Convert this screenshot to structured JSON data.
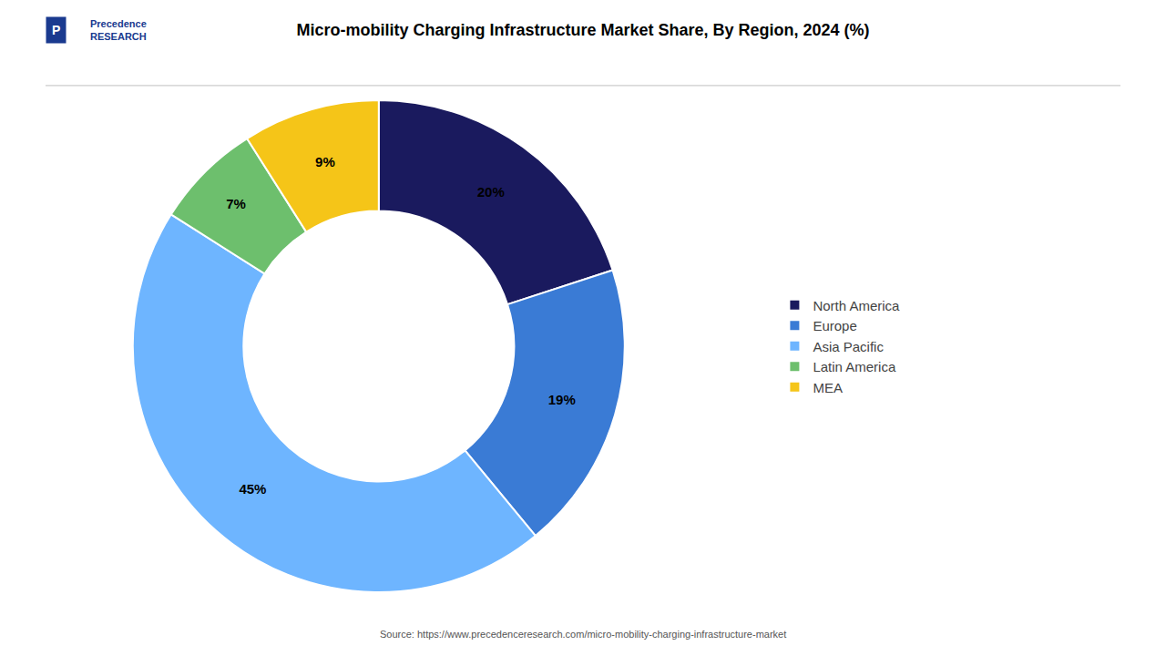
{
  "chart_data": {
    "type": "pie",
    "title": "Micro-mobility Charging Infrastructure Market Share, By Region, 2024 (%)",
    "categories": [
      "North America",
      "Europe",
      "Asia Pacific",
      "Latin America",
      "MEA"
    ],
    "values": [
      20,
      19,
      45,
      7,
      9
    ],
    "value_labels": [
      "20%",
      "19%",
      "45%",
      "7%",
      "9%"
    ],
    "colors": [
      "#1a1a5e",
      "#3a7bd5",
      "#6eb5ff",
      "#6dbf6d",
      "#f5c518"
    ],
    "legend": "right",
    "annotations": [
      "Source: https://www.precedenceresearch.com/micro-mobility-charging-infrastructure-market",
      "Precedence\nRESEARCH",
      "P"
    ]
  }
}
